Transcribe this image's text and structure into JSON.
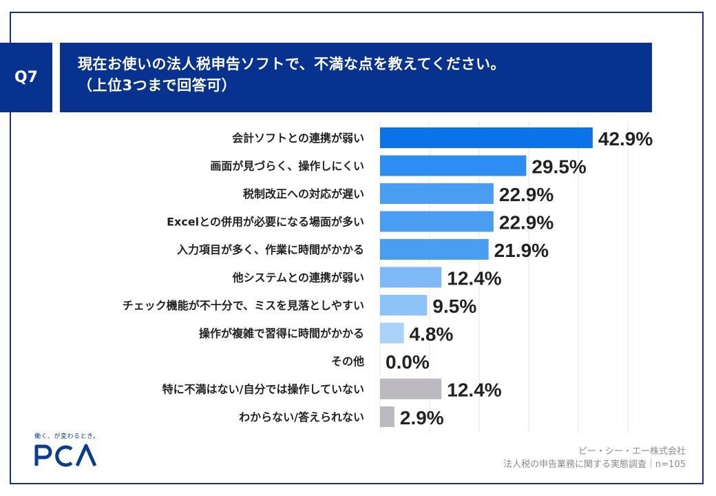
{
  "question": {
    "tag": "Q7",
    "line1": "現在お使いの法人税申告ソフトで、不満な点を教えてください。",
    "line2": "（上位3つまで回答可）"
  },
  "chart_data": {
    "type": "bar",
    "orientation": "horizontal",
    "categories": [
      "会計ソフトとの連携が弱い",
      "画面が見づらく、操作しにくい",
      "税制改正への対応が遅い",
      "Excelとの併用が必要になる場面が多い",
      "入力項目が多く、作業に時間がかかる",
      "他システムとの連携が弱い",
      "チェック機能が不十分で、ミスを見落としやすい",
      "操作が複雑で習得に時間がかかる",
      "その他",
      "特に不満はない/自分では操作していない",
      "わからない/答えられない"
    ],
    "values": [
      42.9,
      29.5,
      22.9,
      22.9,
      21.9,
      12.4,
      9.5,
      4.8,
      0.0,
      12.4,
      2.9
    ],
    "labels": [
      "42.9%",
      "29.5%",
      "22.9%",
      "22.9%",
      "21.9%",
      "12.4%",
      "9.5%",
      "4.8%",
      "0.0%",
      "12.4%",
      "2.9%"
    ],
    "colors": [
      "#0a73e8",
      "#2e8df0",
      "#4a9ef2",
      "#4a9ef2",
      "#4a9ef2",
      "#7fbaf6",
      "#8ec3f7",
      "#a9d2fa",
      "#a9d2fa",
      "#bdb9c1",
      "#bdb9c1"
    ],
    "xlim": [
      0,
      50
    ],
    "grid": true
  },
  "footer": {
    "tagline": "働く、が変わるとき。",
    "logo_text": "PCA",
    "company": "ピー・シー・エー株式会社",
    "survey": "法人税の申告業務に関する実態調査｜n=105"
  },
  "colors": {
    "header_bg": "#07328f",
    "border": "#1c2f7a",
    "grid": "#e6e6e6",
    "value_text": "#222222",
    "label_text": "#222222"
  }
}
